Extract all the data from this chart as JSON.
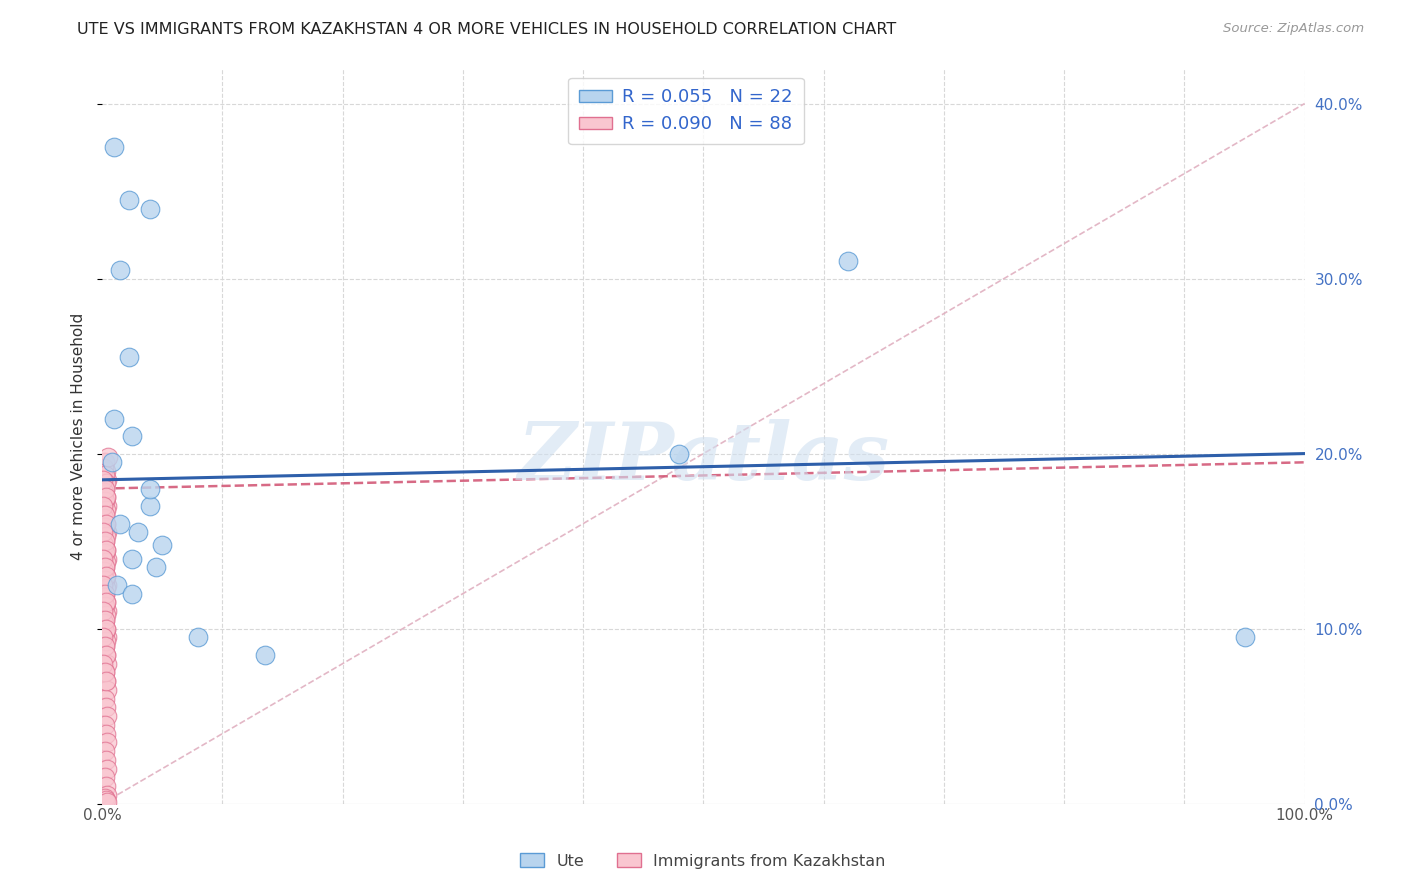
{
  "title": "UTE VS IMMIGRANTS FROM KAZAKHSTAN 4 OR MORE VEHICLES IN HOUSEHOLD CORRELATION CHART",
  "source": "Source: ZipAtlas.com",
  "ylabel": "4 or more Vehicles in Household",
  "legend_label1": "Ute",
  "legend_label2": "Immigrants from Kazakhstan",
  "R_ute": 0.055,
  "N_ute": 22,
  "R_kaz": 0.09,
  "N_kaz": 88,
  "color_ute_fill": "#b8d4ee",
  "color_ute_edge": "#5b9bd5",
  "color_kaz_fill": "#f9c6d0",
  "color_kaz_edge": "#e07090",
  "color_ute_line": "#2e5faa",
  "color_kaz_line": "#d05070",
  "color_diag": "#e0b0c0",
  "color_grid": "#d8d8d8",
  "watermark_color": "#d0e0f0",
  "ute_scatter_x": [
    1.0,
    2.2,
    4.0,
    1.5,
    1.0,
    2.2,
    4.0,
    2.5,
    4.0,
    1.5,
    3.0,
    5.0,
    2.5,
    4.5,
    1.2,
    2.5,
    8.0,
    95.0,
    0.8,
    48.0,
    13.5,
    62.0
  ],
  "ute_scatter_y": [
    37.5,
    34.5,
    34.0,
    30.5,
    22.0,
    25.5,
    17.0,
    21.0,
    18.0,
    16.0,
    15.5,
    14.8,
    14.0,
    13.5,
    12.5,
    12.0,
    9.5,
    9.5,
    19.5,
    20.0,
    8.5,
    31.0
  ],
  "kaz_scatter_x": [
    0.2,
    0.3,
    0.4,
    0.2,
    0.3,
    0.4,
    0.2,
    0.3,
    0.4,
    0.2,
    0.3,
    0.4,
    0.2,
    0.3,
    0.4,
    0.2,
    0.3,
    0.4,
    0.2,
    0.3,
    0.4,
    0.2,
    0.3,
    0.4,
    0.2,
    0.3,
    0.4,
    0.2,
    0.3,
    0.4,
    0.2,
    0.3,
    0.4,
    0.2,
    0.3,
    0.4,
    0.2,
    0.3,
    0.4,
    0.2,
    0.3,
    0.4,
    0.15,
    0.25,
    0.35,
    0.15,
    0.25,
    0.35,
    0.15,
    0.25,
    0.35,
    0.15,
    0.25,
    0.35,
    0.15,
    0.25,
    0.35,
    0.15,
    0.25,
    0.35,
    0.15,
    0.25,
    0.35,
    0.1,
    0.2,
    0.3,
    0.1,
    0.2,
    0.3,
    0.1,
    0.2,
    0.3,
    0.1,
    0.2,
    0.3,
    0.1,
    0.2,
    0.3,
    0.1,
    0.2,
    0.3,
    0.1,
    0.2,
    0.3,
    0.1,
    0.2,
    0.3,
    0.5
  ],
  "kaz_scatter_y": [
    19.5,
    19.0,
    18.5,
    18.0,
    17.5,
    17.0,
    16.5,
    16.0,
    15.5,
    15.0,
    14.5,
    14.0,
    13.5,
    13.0,
    12.5,
    12.0,
    11.5,
    11.0,
    10.5,
    10.0,
    9.5,
    9.0,
    8.5,
    8.0,
    7.5,
    7.0,
    6.5,
    6.0,
    5.5,
    5.0,
    4.5,
    4.0,
    3.5,
    3.0,
    2.5,
    2.0,
    1.5,
    1.0,
    0.5,
    0.3,
    0.2,
    0.1,
    19.2,
    18.8,
    18.3,
    17.8,
    17.3,
    16.8,
    16.3,
    15.8,
    15.3,
    14.8,
    14.3,
    13.8,
    13.3,
    12.8,
    12.3,
    11.8,
    11.3,
    10.8,
    10.3,
    9.8,
    9.3,
    18.5,
    18.0,
    17.5,
    17.0,
    16.5,
    16.0,
    15.5,
    15.0,
    14.5,
    14.0,
    13.5,
    13.0,
    12.5,
    12.0,
    11.5,
    11.0,
    10.5,
    10.0,
    9.5,
    9.0,
    8.5,
    8.0,
    7.5,
    7.0,
    19.8
  ],
  "ute_line_x0": 0,
  "ute_line_x1": 100,
  "ute_line_y0": 18.5,
  "ute_line_y1": 20.0,
  "kaz_line_x0": 0,
  "kaz_line_x1": 100,
  "kaz_line_y0": 18.0,
  "kaz_line_y1": 19.5,
  "diag_x0": 0,
  "diag_x1": 100,
  "diag_y0": 0,
  "diag_y1": 40,
  "xlim": [
    0,
    100
  ],
  "ylim": [
    0,
    42
  ],
  "yticks": [
    0,
    10,
    20,
    30,
    40
  ],
  "ytick_labels": [
    "0.0%",
    "10.0%",
    "20.0%",
    "30.0%",
    "40.0%"
  ],
  "xticks": [
    0,
    10,
    20,
    30,
    40,
    50,
    60,
    70,
    80,
    90,
    100
  ],
  "xtick_labels_show": [
    "0.0%",
    "100.0%"
  ]
}
